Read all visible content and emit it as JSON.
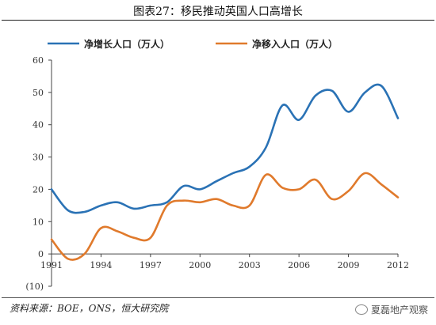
{
  "title": "图表27：移民推动英国人口高增长",
  "source": "资料来源：BOE，ONS，恒大研究院",
  "watermark": "夏磊地产观察",
  "chart_data": {
    "type": "line",
    "x": [
      1991,
      1992,
      1993,
      1994,
      1995,
      1996,
      1997,
      1998,
      1999,
      2000,
      2001,
      2002,
      2003,
      2004,
      2005,
      2006,
      2007,
      2008,
      2009,
      2010,
      2011,
      2012
    ],
    "x_tick_labels": [
      "1991",
      "1994",
      "1997",
      "2000",
      "2003",
      "2006",
      "2009",
      "2012"
    ],
    "x_ticks": [
      1991,
      1994,
      1997,
      2000,
      2003,
      2006,
      2009,
      2012
    ],
    "y_tick_labels": [
      "60",
      "50",
      "40",
      "30",
      "20",
      "10",
      "0",
      "(10)"
    ],
    "y_ticks": [
      60,
      50,
      40,
      30,
      20,
      10,
      0,
      -10
    ],
    "ylim": [
      -10,
      60
    ],
    "grid": false,
    "legend_position": "top",
    "series": [
      {
        "name": "净增长人口（万人）",
        "color": "#2a72b5",
        "values": [
          20,
          13.5,
          13,
          15,
          16,
          14,
          15,
          16,
          21,
          20,
          22.5,
          25,
          27,
          33,
          46,
          41.5,
          49,
          50.5,
          44,
          50,
          52,
          42
        ]
      },
      {
        "name": "净移入人口（万人）",
        "color": "#e07a2c",
        "values": [
          4.5,
          -1.5,
          0,
          8,
          7,
          5,
          5,
          15,
          16.5,
          16,
          17,
          15,
          15,
          24.5,
          20.5,
          20,
          23,
          17,
          19.5,
          25,
          21.5,
          17.5
        ]
      }
    ]
  }
}
